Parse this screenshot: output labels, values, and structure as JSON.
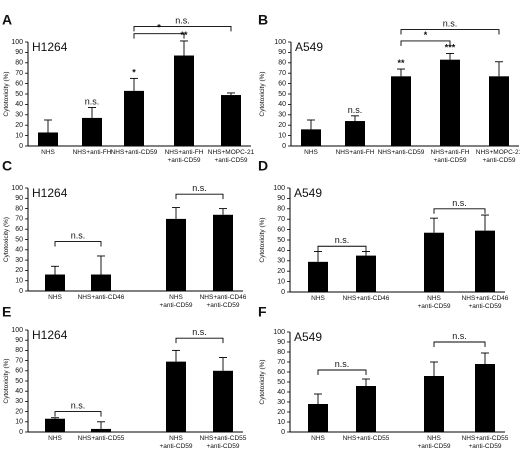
{
  "chart_data": [
    {
      "panel": "A",
      "cell_line": "H1264",
      "type": "bar",
      "ylabel": "Cytotoxicity (%)",
      "ylim": [
        0,
        100
      ],
      "yticks": [
        0,
        10,
        20,
        30,
        40,
        50,
        60,
        70,
        80,
        90,
        100
      ],
      "categories": [
        [
          "NHS"
        ],
        [
          "NHS+anti-FH"
        ],
        [
          "NHS+anti-CD59"
        ],
        [
          "NHS+anti-FH",
          "+anti-CD59"
        ],
        [
          "NHS+MOPC-21",
          "+anti-CD59"
        ]
      ],
      "values": [
        13,
        27,
        53,
        87,
        49
      ],
      "errors": [
        12,
        10,
        12,
        14,
        2
      ],
      "bar_labels": [
        "",
        "n.s.",
        "*",
        "**",
        ""
      ],
      "brackets": [
        {
          "from": 2,
          "to": 4,
          "label": "n.s.",
          "y": 115
        },
        {
          "from": 2,
          "to": 3,
          "label": "*",
          "y": 108
        }
      ]
    },
    {
      "panel": "B",
      "cell_line": "A549",
      "type": "bar",
      "ylabel": "Cytotoxicity (%)",
      "ylim": [
        0,
        100
      ],
      "yticks": [
        0,
        10,
        20,
        30,
        40,
        50,
        60,
        70,
        80,
        90,
        100
      ],
      "categories": [
        [
          "NHS"
        ],
        [
          "NHS+anti-FH"
        ],
        [
          "NHS+anti-CD59"
        ],
        [
          "NHS+anti-FH",
          "+anti-CD59"
        ],
        [
          "NHS+MOPC-21",
          "+anti-CD59"
        ]
      ],
      "values": [
        16,
        24,
        67,
        83,
        67
      ],
      "errors": [
        9,
        5,
        7,
        6,
        14
      ],
      "bar_labels": [
        "",
        "n.s.",
        "**",
        "***",
        ""
      ],
      "brackets": [
        {
          "from": 2,
          "to": 4,
          "label": "n.s.",
          "y": 112
        },
        {
          "from": 2,
          "to": 3,
          "label": "*",
          "y": 101
        }
      ]
    },
    {
      "panel": "C",
      "cell_line": "H1264",
      "type": "bar",
      "ylabel": "Cytotoxicity (%)",
      "ylim": [
        0,
        100
      ],
      "yticks": [
        0,
        10,
        20,
        30,
        40,
        50,
        60,
        70,
        80,
        90,
        100
      ],
      "categories": [
        [
          "NHS"
        ],
        [
          "NHS+anti-CD46"
        ],
        [
          "NHS",
          "+anti-CD59"
        ],
        [
          "NHS+anti-CD46",
          "+anti-CD59"
        ]
      ],
      "values": [
        16,
        16,
        70,
        74
      ],
      "errors": [
        8,
        18,
        11,
        6
      ],
      "bar_labels": [
        "",
        "",
        "",
        ""
      ],
      "brackets": [
        {
          "from": 0,
          "to": 1,
          "label": "n.s.",
          "y": 48
        },
        {
          "from": 2,
          "to": 3,
          "label": "n.s.",
          "y": 94
        }
      ]
    },
    {
      "panel": "D",
      "cell_line": "A549",
      "type": "bar",
      "ylabel": "Cytotoxicity (%)",
      "ylim": [
        0,
        100
      ],
      "yticks": [
        0,
        10,
        20,
        30,
        40,
        50,
        60,
        70,
        80,
        90,
        100
      ],
      "categories": [
        [
          "NHS"
        ],
        [
          "NHS+anti-CD46"
        ],
        [
          "NHS",
          "+anti-CD59"
        ],
        [
          "NHS+anti-CD46",
          "+anti-CD59"
        ]
      ],
      "values": [
        29,
        35,
        57,
        59
      ],
      "errors": [
        10,
        4,
        14,
        15
      ],
      "bar_labels": [
        "",
        "",
        "",
        ""
      ],
      "brackets": [
        {
          "from": 0,
          "to": 1,
          "label": "n.s.",
          "y": 44
        },
        {
          "from": 2,
          "to": 3,
          "label": "n.s.",
          "y": 80
        }
      ]
    },
    {
      "panel": "E",
      "cell_line": "H1264",
      "type": "bar",
      "ylabel": "Cytotoxicity (%)",
      "ylim": [
        0,
        100
      ],
      "yticks": [
        0,
        10,
        20,
        30,
        40,
        50,
        60,
        70,
        80,
        90,
        100
      ],
      "categories": [
        [
          "NHS"
        ],
        [
          "NHS+anti-CD55"
        ],
        [
          "NHS",
          "+anti-CD59"
        ],
        [
          "NHS+anti-CD55",
          "+anti-CD59"
        ]
      ],
      "values": [
        13,
        3,
        69,
        60
      ],
      "errors": [
        1,
        7,
        11,
        13
      ],
      "bar_labels": [
        "",
        "",
        "",
        ""
      ],
      "brackets": [
        {
          "from": 0,
          "to": 1,
          "label": "n.s.",
          "y": 20
        },
        {
          "from": 2,
          "to": 3,
          "label": "n.s.",
          "y": 92
        }
      ]
    },
    {
      "panel": "F",
      "cell_line": "A549",
      "type": "bar",
      "ylabel": "Cytotoxicity (%)",
      "ylim": [
        0,
        100
      ],
      "yticks": [
        0,
        10,
        20,
        30,
        40,
        50,
        60,
        70,
        80,
        90,
        100
      ],
      "categories": [
        [
          "NHS"
        ],
        [
          "NHS+anti-CD55"
        ],
        [
          "NHS",
          "+anti-CD59"
        ],
        [
          "NHS+anti-CD55",
          "+anti-CD59"
        ]
      ],
      "values": [
        28,
        46,
        56,
        68
      ],
      "errors": [
        10,
        7,
        14,
        11
      ],
      "bar_labels": [
        "",
        "",
        "",
        ""
      ],
      "brackets": [
        {
          "from": 0,
          "to": 1,
          "label": "n.s.",
          "y": 62
        },
        {
          "from": 2,
          "to": 3,
          "label": "n.s.",
          "y": 90
        }
      ]
    }
  ]
}
